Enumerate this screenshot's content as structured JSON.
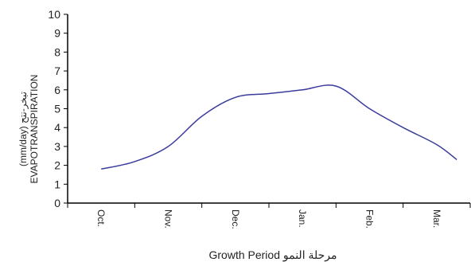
{
  "chart_data": {
    "type": "line",
    "title": "",
    "xlabel": "Growth Period مرحلة النمو",
    "ylabel_line1": "(mm/day) تبخر-نتح",
    "ylabel_line2": "EVAPOTRANSPIRATION",
    "ylim": [
      0,
      10
    ],
    "yticks": [
      "0",
      "1",
      "2",
      "3",
      "4",
      "5",
      "6",
      "7",
      "8",
      "9",
      "10"
    ],
    "categories": [
      "Oct.",
      "Nov.",
      "Dec.",
      "Jan.",
      "Feb.",
      "Mar."
    ],
    "grid": false,
    "series": [
      {
        "color": "#3b3b9e",
        "x": [
          0,
          0.5,
          1,
          1.5,
          2,
          2.5,
          3,
          3.5,
          4,
          4.5,
          5,
          5.3
        ],
        "y": [
          1.8,
          2.2,
          3.0,
          4.6,
          5.6,
          5.8,
          6.0,
          6.2,
          5.0,
          4.0,
          3.1,
          2.3
        ]
      }
    ]
  }
}
